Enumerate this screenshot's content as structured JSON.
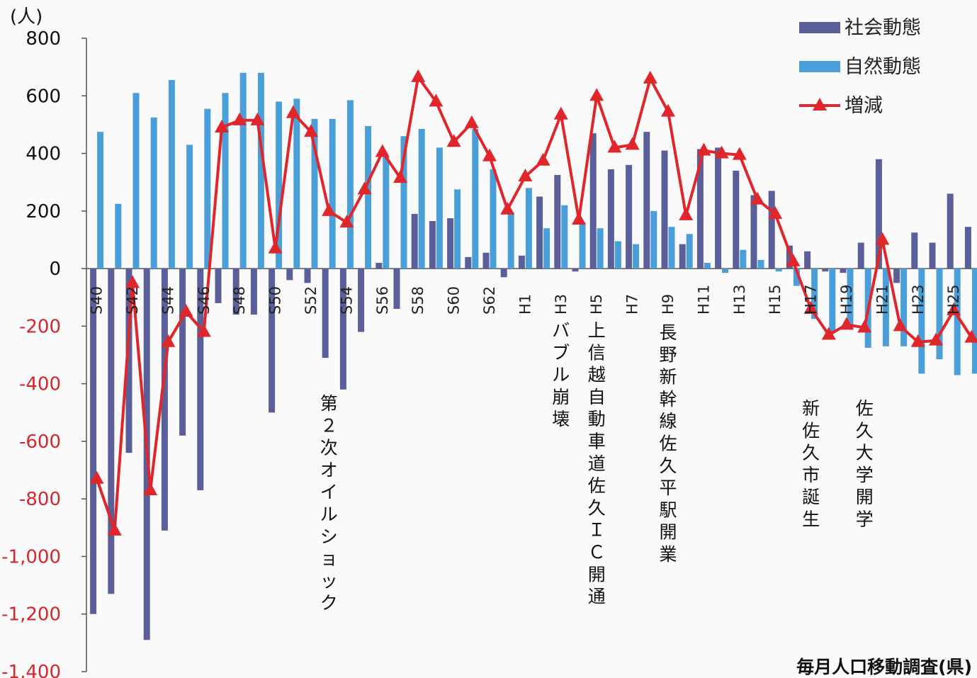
{
  "chart_data": {
    "type": "bar",
    "unit_label": "(人)",
    "ylim": [
      -1400,
      800
    ],
    "y_ticks": [
      800,
      600,
      400,
      200,
      0,
      -200,
      -400,
      -600,
      -800,
      -1000,
      -1200,
      -1400
    ],
    "y_tick_labels": [
      "800",
      "600",
      "400",
      "200",
      "0",
      "-200",
      "-400",
      "-600",
      "-800",
      "-1,000",
      "-1,200",
      "-1,400"
    ],
    "categories": [
      "S40",
      "S41",
      "S42",
      "S43",
      "S44",
      "S45",
      "S46",
      "S47",
      "S48",
      "S49",
      "S50",
      "S51",
      "S52",
      "S53",
      "S54",
      "S55",
      "S56",
      "S57",
      "S58",
      "S59",
      "S60",
      "S61",
      "S62",
      "S63",
      "H1",
      "H2",
      "H3",
      "H4",
      "H5",
      "H6",
      "H7",
      "H8",
      "H9",
      "H10",
      "H11",
      "H12",
      "H13",
      "H14",
      "H15",
      "H16",
      "H17",
      "H18",
      "H19",
      "H20",
      "H21",
      "H22",
      "H23",
      "H24",
      "H25",
      "H26"
    ],
    "category_labels": [
      "S40",
      "",
      "S42",
      "",
      "S44",
      "",
      "S46",
      "",
      "S48",
      "",
      "S50",
      "",
      "S52",
      "",
      "S54",
      "",
      "S56",
      "",
      "S58",
      "",
      "S60",
      "",
      "S62",
      "",
      "H1",
      "",
      "H3",
      "",
      "H5",
      "",
      "H7",
      "",
      "H9",
      "",
      "H11",
      "",
      "H13",
      "",
      "H15",
      "",
      "H17",
      "",
      "H19",
      "",
      "H21",
      "",
      "H23",
      "",
      "H25",
      ""
    ],
    "series": [
      {
        "name": "社会動態",
        "kind": "bar",
        "color": "#5b5f99",
        "values": [
          -1200,
          -1130,
          -640,
          -1290,
          -910,
          -580,
          -770,
          -120,
          -160,
          -160,
          -500,
          -40,
          -50,
          -310,
          -420,
          -220,
          20,
          -140,
          190,
          165,
          175,
          40,
          55,
          -30,
          45,
          250,
          325,
          -10,
          470,
          345,
          360,
          475,
          410,
          85,
          415,
          420,
          340,
          255,
          270,
          80,
          60,
          -10,
          -15,
          90,
          380,
          -50,
          125,
          90,
          260,
          145
        ]
      },
      {
        "name": "自然動態",
        "kind": "bar",
        "color": "#4a9fd8",
        "values": [
          475,
          225,
          610,
          525,
          655,
          430,
          555,
          610,
          680,
          680,
          580,
          590,
          520,
          520,
          585,
          495,
          390,
          460,
          485,
          420,
          275,
          485,
          345,
          195,
          280,
          140,
          220,
          160,
          140,
          95,
          85,
          200,
          145,
          120,
          20,
          -15,
          65,
          30,
          -10,
          -60,
          -175,
          -225,
          -210,
          -275,
          -270,
          -270,
          -365,
          -315,
          -370,
          -365
        ]
      },
      {
        "name": "増減",
        "kind": "line",
        "color": "#e0262a",
        "values": [
          -730,
          -910,
          -50,
          -770,
          -255,
          -150,
          -220,
          490,
          515,
          515,
          70,
          540,
          475,
          200,
          160,
          275,
          405,
          315,
          665,
          580,
          440,
          505,
          390,
          205,
          320,
          375,
          535,
          170,
          600,
          420,
          430,
          660,
          545,
          185,
          410,
          400,
          395,
          240,
          190,
          25,
          -140,
          -230,
          -195,
          -205,
          100,
          -200,
          -255,
          -250,
          -145,
          -240
        ]
      }
    ],
    "annotations": [
      {
        "text": "第２次オイルショック",
        "category": "S53"
      },
      {
        "text": "バブル崩壊",
        "category": "H3"
      },
      {
        "text": "上信越自動車道佐久ＩＣ開通",
        "category": "H5"
      },
      {
        "text": "長野新幹線佐久平駅開業",
        "category": "H9"
      },
      {
        "text": "新佐久市誕生",
        "category": "H17"
      },
      {
        "text": "佐久大学開学",
        "category": "H20"
      }
    ],
    "legend_position": "top-right",
    "source": "毎月人口移動調査(県)",
    "grid": false
  }
}
